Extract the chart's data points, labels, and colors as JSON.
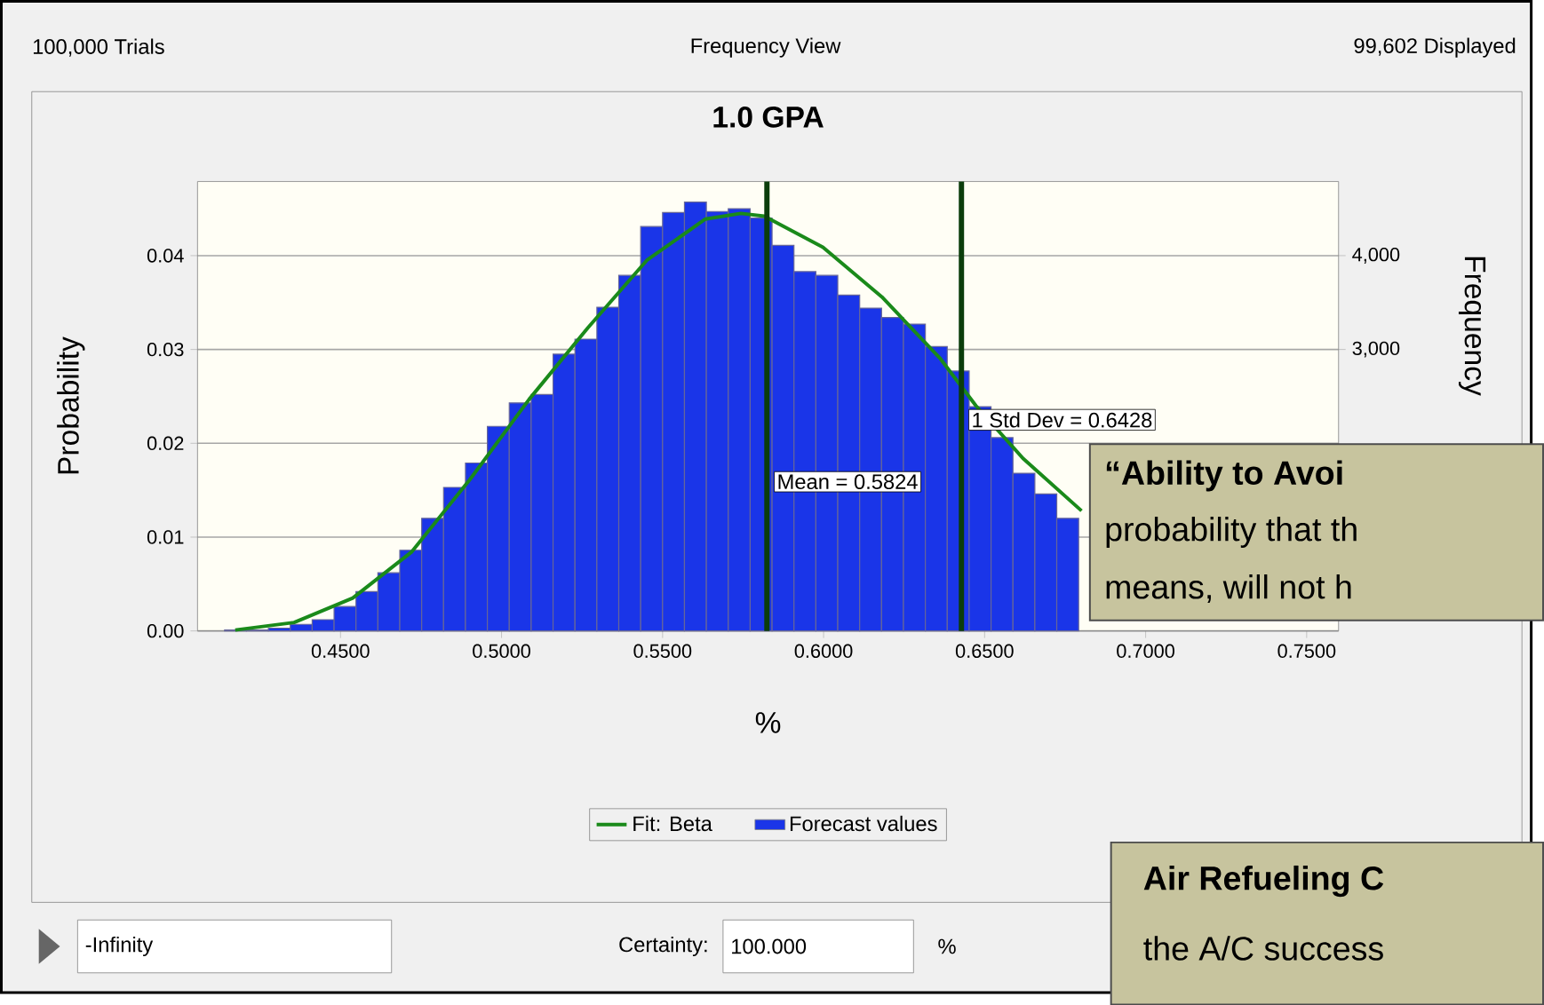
{
  "chart_data": {
    "type": "histogram",
    "title": "1.0 GPA",
    "xlabel": "%",
    "ylabel": "Probability",
    "y2label": "Frequency",
    "bins": [
      0.414,
      0.4208,
      0.4276,
      0.4344,
      0.4412,
      0.448,
      0.4548,
      0.4616,
      0.4684,
      0.4752,
      0.482,
      0.4888,
      0.4956,
      0.5024,
      0.5092,
      0.516,
      0.5228,
      0.5296,
      0.5364,
      0.5432,
      0.55,
      0.5568,
      0.5636,
      0.5704,
      0.5772,
      0.584,
      0.5908,
      0.5976,
      0.6044,
      0.6112,
      0.618,
      0.6248,
      0.6316,
      0.6384,
      0.6452,
      0.652,
      0.6588,
      0.6656,
      0.6724,
      0.6792
    ],
    "series": [
      {
        "name": "Fit: Beta",
        "type": "line",
        "color": "#1a8a1a",
        "x": [
          0.4173,
          0.4356,
          0.4538,
          0.472,
          0.4903,
          0.5086,
          0.5268,
          0.5451,
          0.5633,
          0.5743,
          0.5816,
          0.5998,
          0.6181,
          0.6363,
          0.6473,
          0.6619,
          0.6801
        ],
        "values": [
          0.0001,
          0.0009,
          0.0035,
          0.0084,
          0.0162,
          0.0247,
          0.0323,
          0.0395,
          0.0439,
          0.0445,
          0.0442,
          0.0409,
          0.0356,
          0.029,
          0.024,
          0.0184,
          0.0128
        ]
      },
      {
        "name": "Forecast values",
        "color": "#1a35e8",
        "values": [
          0.0001,
          0.0001,
          0.0003,
          0.0007,
          0.0012,
          0.0026,
          0.0042,
          0.0062,
          0.0086,
          0.012,
          0.0153,
          0.0179,
          0.0218,
          0.0243,
          0.0252,
          0.0295,
          0.0311,
          0.0345,
          0.0379,
          0.0431,
          0.0446,
          0.0457,
          0.0447,
          0.045,
          0.044,
          0.0411,
          0.0383,
          0.0379,
          0.0358,
          0.0344,
          0.0334,
          0.0327,
          0.0303,
          0.0277,
          0.0239,
          0.0206,
          0.0168,
          0.0146,
          0.012
        ]
      }
    ],
    "xlim": [
      0.4056,
      0.7599
    ],
    "ylim": [
      0,
      0.0479
    ],
    "y2lim": [
      0,
      4790
    ],
    "xticks": [
      {
        "value": 0.45,
        "label": "0.4500"
      },
      {
        "value": 0.5,
        "label": "0.5000"
      },
      {
        "value": 0.55,
        "label": "0.5500"
      },
      {
        "value": 0.6,
        "label": "0.6000"
      },
      {
        "value": 0.65,
        "label": "0.6500"
      },
      {
        "value": 0.7,
        "label": "0.7000"
      },
      {
        "value": 0.75,
        "label": "0.7500"
      }
    ],
    "yticks": [
      {
        "value": 0,
        "label": "0.00"
      },
      {
        "value": 0.01,
        "label": "0.01"
      },
      {
        "value": 0.02,
        "label": "0.02"
      },
      {
        "value": 0.03,
        "label": "0.03"
      },
      {
        "value": 0.04,
        "label": "0.04"
      }
    ],
    "y2ticks": [
      {
        "value": 3000,
        "label": "3,000"
      },
      {
        "value": 4000,
        "label": "4,000"
      }
    ],
    "ref_lines": [
      {
        "axis": "x",
        "value": 0.5824,
        "label": "Mean = 0.5824",
        "color": "#0b3d0b"
      },
      {
        "axis": "x",
        "value": 0.6428,
        "label": "1 Std Dev = 0.6428",
        "color": "#0b3d0b"
      }
    ],
    "grid": "y",
    "legend": "bottom",
    "annotations": [
      "100,000 Trials",
      "Frequency View",
      "99,602 Displayed",
      "-Infinity",
      "Certainty:",
      "100.000",
      "%",
      "“Ability to Avoi",
      "probability that th",
      "means, will not h",
      "Air Refueling C",
      "the A/C success"
    ]
  }
}
